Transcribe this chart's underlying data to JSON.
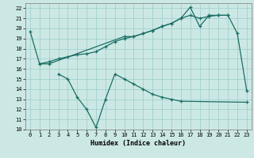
{
  "xlabel": "Humidex (Indice chaleur)",
  "bg_color": "#cce8e4",
  "line_color": "#1a6e64",
  "grid_color": "#99cccc",
  "ylim": [
    10,
    22.5
  ],
  "xlim": [
    -0.5,
    23.5
  ],
  "yticks": [
    10,
    11,
    12,
    13,
    14,
    15,
    16,
    17,
    18,
    19,
    20,
    21,
    22
  ],
  "xticks": [
    0,
    1,
    2,
    3,
    4,
    5,
    6,
    7,
    8,
    9,
    10,
    11,
    12,
    13,
    14,
    15,
    16,
    17,
    18,
    19,
    20,
    21,
    22,
    23
  ],
  "line1_x": [
    0,
    1,
    2,
    10,
    11,
    12,
    13,
    14,
    15,
    16,
    17,
    18,
    19,
    20,
    21,
    22,
    23
  ],
  "line1_y": [
    19.7,
    16.5,
    16.5,
    19.2,
    19.2,
    19.5,
    19.8,
    20.2,
    20.5,
    21.0,
    22.1,
    20.2,
    21.3,
    21.3,
    21.3,
    19.5,
    13.8
  ],
  "line2_x": [
    1,
    2,
    3,
    4,
    5,
    6,
    7,
    8,
    9,
    10,
    11,
    12,
    13,
    14,
    15,
    16,
    17,
    18,
    19,
    20,
    21
  ],
  "line2_y": [
    16.5,
    16.7,
    17.0,
    17.2,
    17.4,
    17.5,
    17.7,
    18.2,
    18.7,
    19.0,
    19.2,
    19.5,
    19.8,
    20.2,
    20.5,
    21.0,
    21.3,
    21.0,
    21.2,
    21.3,
    21.3
  ],
  "line3_x": [
    3,
    4,
    5,
    6,
    7,
    8,
    9,
    10,
    11,
    12,
    13,
    14,
    15,
    16,
    23
  ],
  "line3_y": [
    15.5,
    15.0,
    13.2,
    12.0,
    10.2,
    13.0,
    15.5,
    15.0,
    14.5,
    14.0,
    13.5,
    13.2,
    13.0,
    12.8,
    12.7
  ]
}
